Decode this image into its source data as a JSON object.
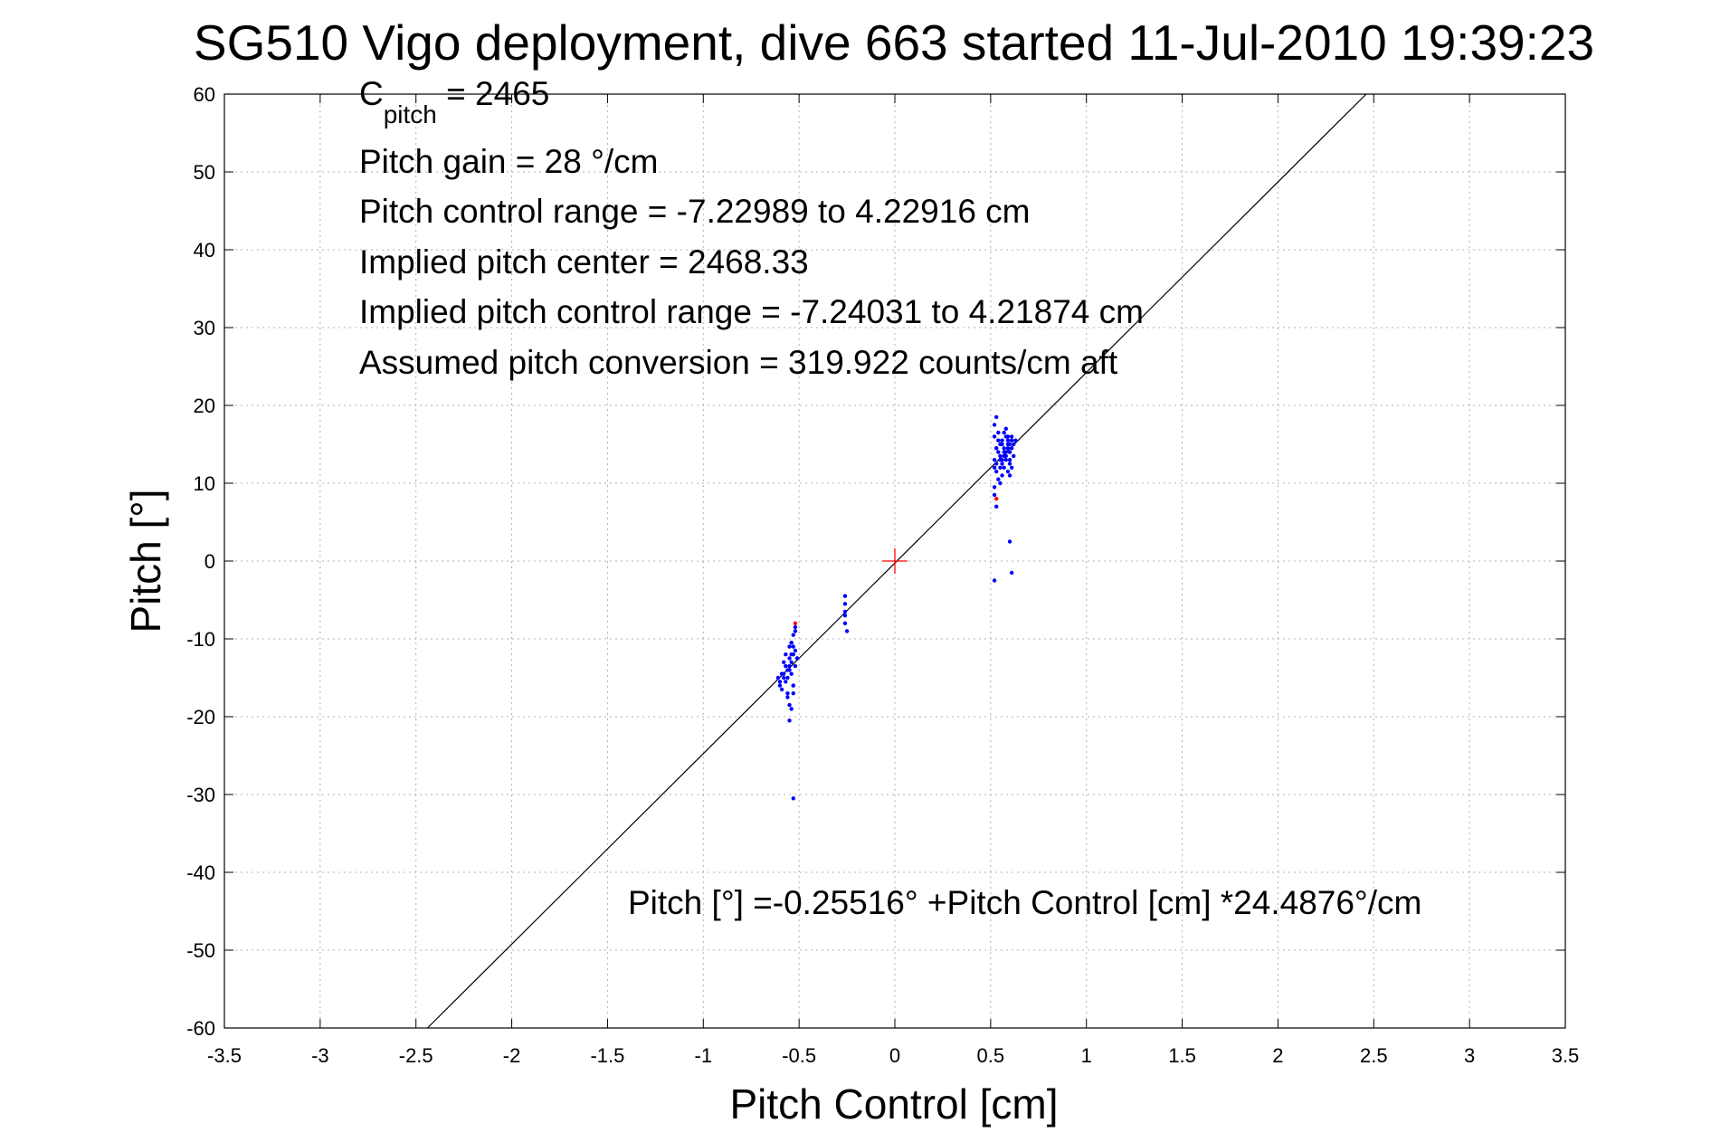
{
  "chart_data": {
    "type": "scatter",
    "title": "SG510 Vigo deployment, dive 663 started 11-Jul-2010 19:39:23",
    "xlabel": "Pitch Control [cm]",
    "ylabel": "Pitch [°]",
    "xlim": [
      -3.5,
      3.5
    ],
    "ylim": [
      -60,
      60
    ],
    "x_ticks": [
      -3.5,
      -3,
      -2.5,
      -2,
      -1.5,
      -1,
      -0.5,
      0,
      0.5,
      1,
      1.5,
      2,
      2.5,
      3,
      3.5
    ],
    "x_tick_labels": [
      "-3.5",
      "-3",
      "-2.5",
      "-2",
      "-1.5",
      "-1",
      "-0.5",
      "0",
      "0.5",
      "1",
      "1.5",
      "2",
      "2.5",
      "3",
      "3.5"
    ],
    "y_ticks": [
      -60,
      -50,
      -40,
      -30,
      -20,
      -10,
      0,
      10,
      20,
      30,
      40,
      50,
      60
    ],
    "y_tick_labels": [
      "-60",
      "-50",
      "-40",
      "-30",
      "-20",
      "-10",
      "0",
      "10",
      "20",
      "30",
      "40",
      "50",
      "60"
    ],
    "grid": true,
    "fit_line": {
      "intercept": -0.25516,
      "slope": 24.4876
    },
    "center_marker": {
      "x": 0,
      "y": 0,
      "color": "#ff0000"
    },
    "series": [
      {
        "color": "#0000ff",
        "x": [
          0.52,
          0.53,
          0.54,
          0.55,
          0.56,
          0.57,
          0.58,
          0.59,
          0.6,
          0.61,
          0.62,
          0.53,
          0.55,
          0.57,
          0.59,
          0.61,
          0.54,
          0.56,
          0.58,
          0.6,
          0.52,
          0.55,
          0.57,
          0.59,
          0.62,
          0.53,
          0.56,
          0.58,
          0.6,
          0.54,
          0.57,
          0.59,
          0.61,
          0.52,
          0.55,
          0.58,
          0.6,
          0.63,
          0.53,
          0.56,
          0.59,
          0.54,
          0.57,
          0.6,
          0.52,
          0.55,
          0.58,
          0.61,
          0.53,
          0.56,
          0.52,
          0.53,
          0.52,
          0.6,
          0.61,
          0.52,
          -0.6,
          -0.59,
          -0.58,
          -0.57,
          -0.56,
          -0.55,
          -0.54,
          -0.53,
          -0.52,
          -0.51,
          -0.61,
          -0.6,
          -0.58,
          -0.57,
          -0.55,
          -0.54,
          -0.53,
          -0.52,
          -0.56,
          -0.55,
          -0.54,
          -0.53,
          -0.52,
          -0.51,
          -0.59,
          -0.57,
          -0.56,
          -0.55,
          -0.54,
          -0.53,
          -0.52,
          -0.58,
          -0.56,
          -0.54,
          -0.53,
          -0.55,
          -0.54,
          -0.55,
          -0.53,
          -0.53,
          -0.26,
          -0.26,
          -0.26,
          -0.26,
          -0.26,
          -0.25
        ],
        "y": [
          13.0,
          12.5,
          14.0,
          13.5,
          15.0,
          14.5,
          13.0,
          15.5,
          14.0,
          16.0,
          13.5,
          14.5,
          12.0,
          13.5,
          15.0,
          14.5,
          16.5,
          15.5,
          14.0,
          15.0,
          12.0,
          13.0,
          14.0,
          16.0,
          15.0,
          11.5,
          12.5,
          13.5,
          12.5,
          15.5,
          16.5,
          14.5,
          12.0,
          17.5,
          15.0,
          16.0,
          13.0,
          15.5,
          18.5,
          11.0,
          11.5,
          10.5,
          12.0,
          11.0,
          9.5,
          10.0,
          17.0,
          15.5,
          14.5,
          13.0,
          8.5,
          7.0,
          -2.5,
          2.5,
          -1.5,
          16.0,
          -15.5,
          -14.5,
          -15.0,
          -13.5,
          -14.0,
          -12.5,
          -13.0,
          -12.0,
          -13.5,
          -12.5,
          -15.0,
          -16.0,
          -14.5,
          -15.5,
          -13.5,
          -14.5,
          -16.0,
          -11.5,
          -17.0,
          -11.0,
          -10.5,
          -9.5,
          -9.0,
          -12.5,
          -16.5,
          -12.0,
          -17.5,
          -18.5,
          -10.5,
          -11.0,
          -8.5,
          -13.0,
          -15.0,
          -19.0,
          -17.0,
          -20.5,
          -12.0,
          -14.0,
          -16.0,
          -30.5,
          -4.5,
          -5.5,
          -6.5,
          -7.0,
          -8.0,
          -9.0
        ]
      },
      {
        "color": "#ff0000",
        "x": [
          0.53,
          -0.52
        ],
        "y": [
          8.0,
          -8.0
        ]
      }
    ],
    "annotations": [
      {
        "main": "C",
        "sub": "pitch",
        "rest": " = 2465"
      },
      {
        "main": "Pitch gain = 28 °/cm"
      },
      {
        "main": "Pitch control range = -7.22989 to 4.22916 cm"
      },
      {
        "main": "Implied pitch center = 2468.33"
      },
      {
        "main": "Implied pitch control range = -7.24031 to 4.21874 cm"
      },
      {
        "main": "Assumed pitch conversion = 319.922 counts/cm aft"
      }
    ],
    "fit_text": "Pitch [°] =-0.25516° +Pitch Control [cm] *24.4876°/cm"
  }
}
